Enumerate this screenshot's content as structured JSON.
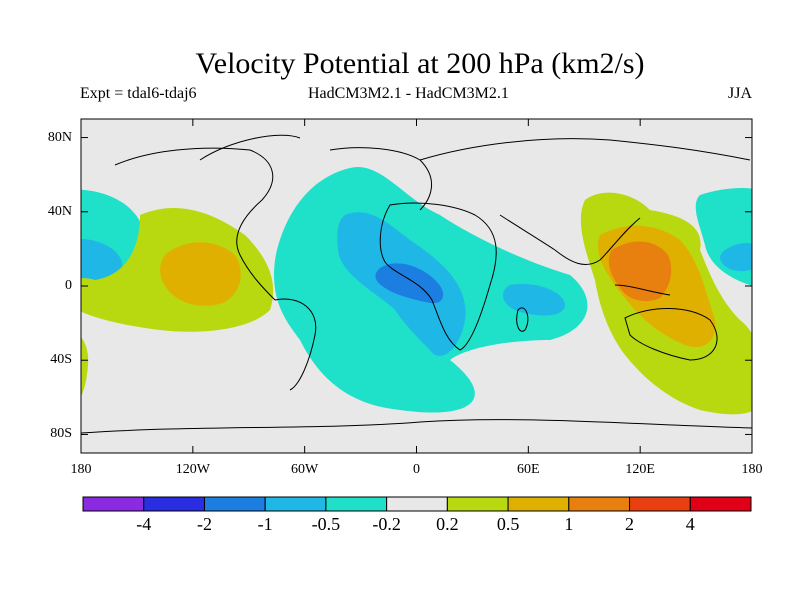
{
  "chart_data": {
    "type": "heatmap",
    "title": "Velocity Potential at 200 hPa (km2/s)",
    "subtitle_left": "Expt = tdal6-tdaj6",
    "subtitle_center": "HadCM3M2.1 - HadCM3M2.1",
    "subtitle_right": "JJA",
    "xlabel": "",
    "ylabel": "",
    "xlim": [
      -180,
      180
    ],
    "ylim": [
      -90,
      90
    ],
    "x_ticks": [
      {
        "value": -180,
        "label": "180"
      },
      {
        "value": -120,
        "label": "120W"
      },
      {
        "value": -60,
        "label": "60W"
      },
      {
        "value": 0,
        "label": "0"
      },
      {
        "value": 60,
        "label": "60E"
      },
      {
        "value": 120,
        "label": "120E"
      },
      {
        "value": 180,
        "label": "180"
      }
    ],
    "y_ticks": [
      {
        "value": 80,
        "label": "80N"
      },
      {
        "value": 40,
        "label": "40N"
      },
      {
        "value": 0,
        "label": "0"
      },
      {
        "value": -40,
        "label": "40S"
      },
      {
        "value": -80,
        "label": "80S"
      }
    ],
    "colorbar": {
      "colors": [
        "#8a2be2",
        "#2a2ee0",
        "#1c7ee0",
        "#1fb8e6",
        "#1fe0c8",
        "#e8e8e8",
        "#b8d810",
        "#e0b000",
        "#e88010",
        "#e84010",
        "#e00018"
      ],
      "levels": [
        "-4",
        "-2",
        "-1",
        "-0.5",
        "-0.2",
        "0.2",
        "0.5",
        "1",
        "2",
        "4"
      ]
    },
    "series": [
      {
        "name": "negative -0.2 to -0.5 region",
        "bin": "-0.2 to -0.5",
        "center": [
          -20,
          10
        ]
      },
      {
        "name": "negative -0.5 to -1 region",
        "bin": "-0.5 to -1",
        "center": [
          -15,
          0
        ]
      },
      {
        "name": "negative -1 to -2 region",
        "bin": "-1 to -2",
        "center": [
          -5,
          0
        ]
      },
      {
        "name": "positive 0.5 to 1 region",
        "bin": "0.5 to 1",
        "center": [
          -130,
          5
        ]
      },
      {
        "name": "positive 1 to 2 region",
        "bin": "1 to 2",
        "center": [
          125,
          5
        ]
      }
    ]
  }
}
